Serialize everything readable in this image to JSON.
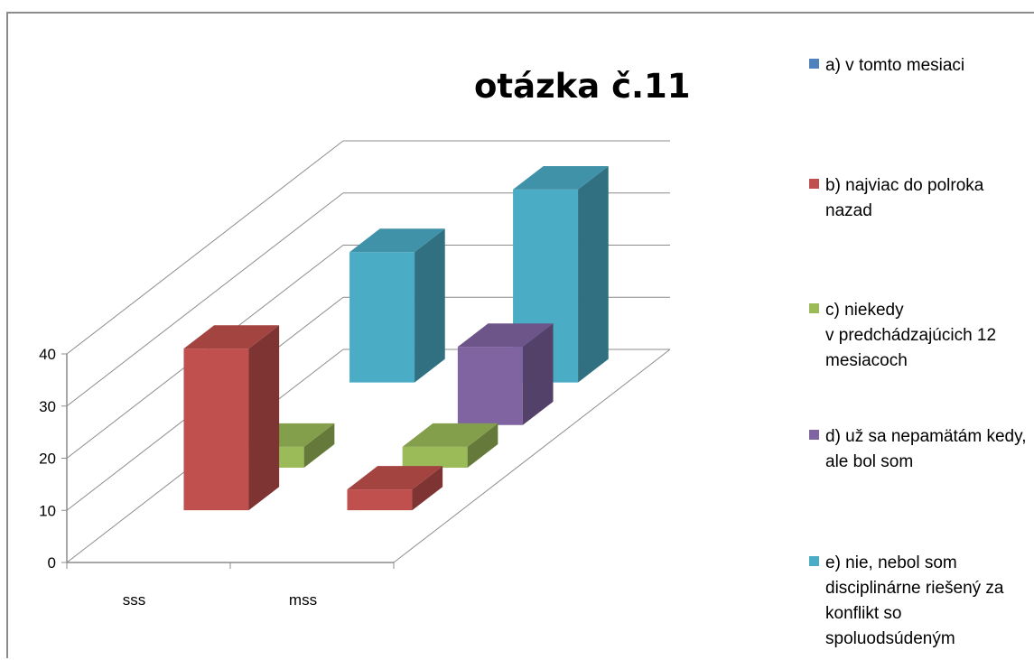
{
  "chart_data": {
    "type": "bar",
    "style": "3d-clustered-column",
    "title": "otázka č.11",
    "categories": [
      "sss",
      "mss"
    ],
    "yticks": [
      "0",
      "10",
      "20",
      "30",
      "40"
    ],
    "ylim": [
      0,
      40
    ],
    "grid": true,
    "legend_position": "right",
    "series": [
      {
        "name": "a)    v tomto mesiaci",
        "color": "#4f81bd",
        "values": [
          0,
          0
        ]
      },
      {
        "name": "b)   najviac do polroka nazad",
        "color": "#c0504d",
        "values": [
          31,
          4
        ]
      },
      {
        "name": "c)    niekedy\nv predchádzajúcich 12 mesiacoch",
        "color": "#9bbb59",
        "values": [
          4,
          4
        ]
      },
      {
        "name": "d)  už sa nepamätám kedy, ale bol som",
        "color": "#8064a2",
        "values": [
          0,
          15
        ]
      },
      {
        "name": "e)    nie, nebol som disciplinárne riešený za konflikt so spoluodsúdeným",
        "color": "#4bacc6",
        "values": [
          25,
          37
        ]
      }
    ]
  }
}
